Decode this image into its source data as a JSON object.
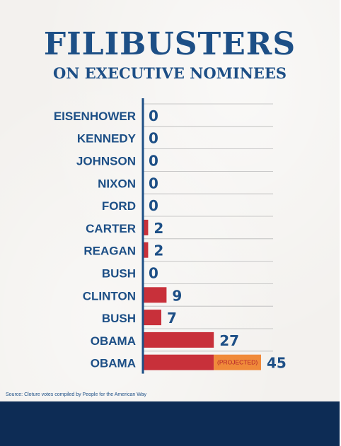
{
  "title": "FILIBUSTERS",
  "subtitle": "ON EXECUTIVE NOMINEES",
  "source": "Source: Cloture votes compiled by People for the American Way",
  "colors": {
    "text": "#1d4f86",
    "bar": "#c8303a",
    "projected": "#f08a3a",
    "axis": "#1d4f86",
    "grid": "#b9b9b9",
    "footer": "#0d2c55"
  },
  "chart_data": {
    "type": "bar",
    "orientation": "horizontal",
    "categories": [
      "EISENHOWER",
      "KENNEDY",
      "JOHNSON",
      "NIXON",
      "FORD",
      "CARTER",
      "REAGAN",
      "BUSH",
      "CLINTON",
      "BUSH",
      "OBAMA",
      "OBAMA"
    ],
    "values": [
      0,
      0,
      0,
      0,
      0,
      2,
      2,
      0,
      9,
      7,
      27,
      45
    ],
    "value_labels": [
      "0",
      "0",
      "0",
      "0",
      "0",
      "2",
      "2",
      "0",
      "9",
      "7",
      "27",
      "45"
    ],
    "projected": {
      "category_index": 11,
      "from": 27,
      "to": 45,
      "label": "(PROJECTED)"
    },
    "grid": true,
    "legend": "none",
    "xlim": [
      0,
      45
    ]
  }
}
